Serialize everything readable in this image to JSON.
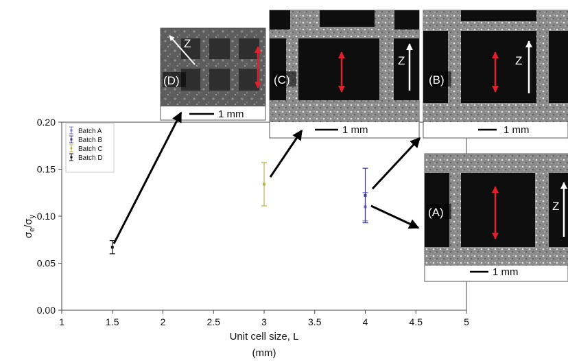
{
  "chart_data": {
    "type": "scatter",
    "xlabel_line1": "Unit cell size, L",
    "xlabel_line2": "(mm)",
    "ylabel_main": "σ",
    "ylabel_sub1": "e",
    "ylabel_mid": "/σ",
    "ylabel_sub2": "y",
    "xlim": [
      1,
      5
    ],
    "ylim": [
      0,
      0.2
    ],
    "x_ticks": [
      "1",
      "1.5",
      "2",
      "2.5",
      "3",
      "3.5",
      "4",
      "4.5",
      "5"
    ],
    "y_ticks": [
      "0.00",
      "0.05",
      "0.10",
      "0.15",
      "0.20"
    ],
    "grid": false,
    "legend_position": "top-left",
    "series": [
      {
        "name": "Batch A",
        "color": "#7b76c4",
        "points": [
          {
            "x": 4.0,
            "y": 0.11,
            "err": 0.015
          }
        ]
      },
      {
        "name": "Batch B",
        "color": "#3a3a8e",
        "points": [
          {
            "x": 4.0,
            "y": 0.122,
            "err": 0.029
          }
        ]
      },
      {
        "name": "Batch C",
        "color": "#b7b64e",
        "points": [
          {
            "x": 3.0,
            "y": 0.134,
            "err": 0.023
          }
        ]
      },
      {
        "name": "Batch D",
        "color": "#111111",
        "points": [
          {
            "x": 1.5,
            "y": 0.067,
            "err": 0.007
          }
        ]
      }
    ]
  },
  "insets": [
    {
      "label": "(D)",
      "scale": "1 mm",
      "axis": "Z"
    },
    {
      "label": "(C)",
      "scale": "1 mm",
      "axis": "Z"
    },
    {
      "label": "(B)",
      "scale": "1 mm",
      "axis": "Z"
    },
    {
      "label": "(A)",
      "scale": "1 mm",
      "axis": "Z"
    }
  ],
  "colors": {
    "stress_arrow": "#e0202a",
    "z_arrow": "#ffffff",
    "pointer_arrow": "#000000"
  }
}
